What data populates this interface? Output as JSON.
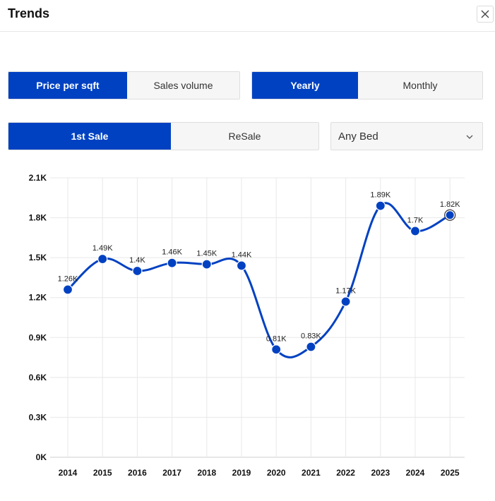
{
  "header": {
    "title": "Trends",
    "close_icon": "close-icon"
  },
  "controls": {
    "metric": {
      "options": [
        "Price per sqft",
        "Sales volume"
      ],
      "selected": "Price per sqft"
    },
    "period": {
      "options": [
        "Yearly",
        "Monthly"
      ],
      "selected": "Yearly"
    },
    "sale_type": {
      "options": [
        "1st Sale",
        "ReSale"
      ],
      "selected": "1st Sale"
    },
    "bedrooms": {
      "selected": "Any Bed",
      "icon": "chevron-down-icon"
    }
  },
  "colors": {
    "accent": "#0041c2",
    "grid": "#e8e8e8"
  },
  "chart_data": {
    "type": "line",
    "x": [
      "2014",
      "2015",
      "2016",
      "2017",
      "2018",
      "2019",
      "2020",
      "2021",
      "2022",
      "2023",
      "2024",
      "2025"
    ],
    "series": [
      {
        "values": [
          1260,
          1490,
          1400,
          1460,
          1450,
          1440,
          810,
          830,
          1170,
          1890,
          1700,
          1820
        ],
        "labels": [
          "1.26K",
          "1.49K",
          "1.4K",
          "1.46K",
          "1.45K",
          "1.44K",
          "0.81K",
          "0.83K",
          "1.17K",
          "1.89K",
          "1.7K",
          "1.82K"
        ]
      }
    ],
    "yticks": [
      0,
      300,
      600,
      900,
      1200,
      1500,
      1800,
      2100
    ],
    "ytick_labels": [
      "0K",
      "0.3K",
      "0.6K",
      "0.9K",
      "1.2K",
      "1.5K",
      "1.8K",
      "2.1K"
    ],
    "ylim": [
      0,
      2100
    ],
    "grid": true,
    "highlighted_point": "2025"
  }
}
